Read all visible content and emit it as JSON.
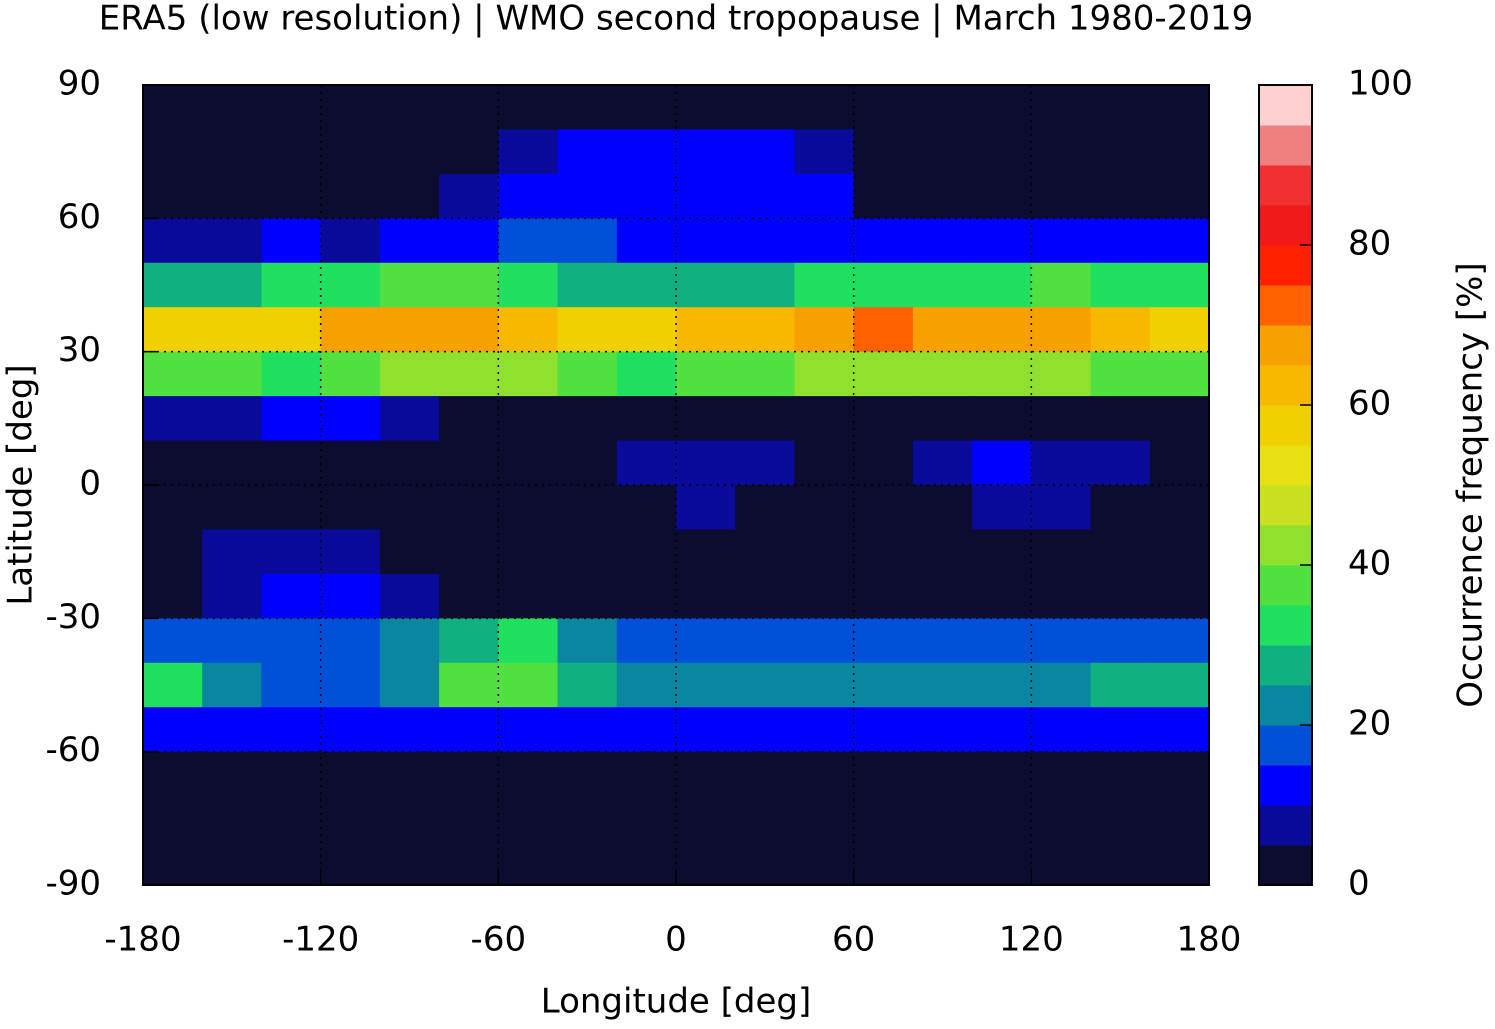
{
  "chart_data": {
    "type": "heatmap",
    "title": "ERA5 (low resolution) | WMO second tropopause | March 1980-2019",
    "x_label": "Longitude [deg]",
    "y_label": "Latitude [deg]",
    "colorbar_label": "Occurrence frequency [%]",
    "x": [
      -170,
      -150,
      -130,
      -110,
      -90,
      -70,
      -50,
      -30,
      -10,
      10,
      30,
      50,
      70,
      90,
      110,
      130,
      150,
      170
    ],
    "y": [
      85,
      75,
      65,
      55,
      45,
      35,
      25,
      15,
      5,
      -5,
      -15,
      -25,
      -35,
      -45,
      -55,
      -65,
      -75,
      -85
    ],
    "values": [
      [
        2,
        2,
        2,
        2,
        2,
        2,
        2,
        2,
        2,
        2,
        2,
        2,
        2,
        2,
        2,
        2,
        2,
        2
      ],
      [
        2,
        2,
        2,
        2,
        2,
        2,
        8,
        10,
        10,
        12,
        10,
        8,
        2,
        2,
        2,
        2,
        2,
        2
      ],
      [
        2,
        2,
        2,
        3,
        3,
        5,
        10,
        12,
        12,
        12,
        12,
        10,
        4,
        3,
        3,
        3,
        3,
        3
      ],
      [
        8,
        8,
        10,
        8,
        10,
        12,
        15,
        15,
        12,
        12,
        10,
        10,
        10,
        10,
        10,
        12,
        12,
        10
      ],
      [
        28,
        28,
        30,
        30,
        35,
        35,
        32,
        28,
        25,
        25,
        28,
        30,
        32,
        32,
        32,
        35,
        32,
        30
      ],
      [
        55,
        55,
        58,
        65,
        68,
        65,
        60,
        58,
        58,
        60,
        62,
        65,
        70,
        68,
        66,
        65,
        62,
        58
      ],
      [
        35,
        35,
        30,
        35,
        40,
        42,
        40,
        35,
        30,
        35,
        38,
        40,
        40,
        42,
        42,
        40,
        38,
        35
      ],
      [
        5,
        8,
        10,
        10,
        5,
        3,
        3,
        3,
        3,
        2,
        3,
        3,
        3,
        3,
        3,
        3,
        3,
        3
      ],
      [
        2,
        2,
        2,
        2,
        2,
        2,
        2,
        2,
        5,
        8,
        8,
        2,
        2,
        8,
        10,
        8,
        5,
        2
      ],
      [
        2,
        2,
        2,
        2,
        2,
        2,
        2,
        2,
        2,
        5,
        2,
        2,
        2,
        2,
        5,
        5,
        2,
        2
      ],
      [
        2,
        5,
        8,
        5,
        2,
        2,
        2,
        2,
        2,
        2,
        2,
        2,
        2,
        2,
        2,
        2,
        2,
        2
      ],
      [
        3,
        8,
        12,
        12,
        8,
        3,
        3,
        3,
        3,
        3,
        3,
        3,
        3,
        3,
        3,
        3,
        3,
        3
      ],
      [
        15,
        15,
        18,
        18,
        20,
        25,
        30,
        20,
        18,
        15,
        15,
        15,
        15,
        15,
        15,
        15,
        18,
        18
      ],
      [
        30,
        20,
        18,
        18,
        20,
        35,
        35,
        25,
        22,
        22,
        22,
        22,
        22,
        22,
        22,
        22,
        25,
        28
      ],
      [
        10,
        10,
        10,
        10,
        10,
        12,
        12,
        10,
        10,
        10,
        10,
        10,
        10,
        10,
        10,
        10,
        10,
        10
      ],
      [
        2,
        2,
        2,
        2,
        2,
        2,
        2,
        2,
        2,
        2,
        2,
        2,
        2,
        2,
        2,
        2,
        2,
        2
      ],
      [
        2,
        2,
        2,
        2,
        2,
        2,
        2,
        2,
        2,
        2,
        2,
        2,
        2,
        2,
        2,
        2,
        2,
        2
      ],
      [
        2,
        2,
        2,
        2,
        2,
        2,
        2,
        2,
        2,
        2,
        2,
        2,
        2,
        2,
        2,
        2,
        2,
        2
      ]
    ],
    "xlim": [
      -180,
      180
    ],
    "ylim": [
      -90,
      90
    ],
    "xticks": [
      -180,
      -120,
      -60,
      0,
      60,
      120,
      180
    ],
    "yticks": [
      -90,
      -60,
      -30,
      0,
      30,
      60,
      90
    ],
    "grid": true,
    "levels": [
      0,
      5,
      10,
      15,
      20,
      25,
      30,
      35,
      40,
      45,
      50,
      55,
      60,
      65,
      70,
      75,
      80,
      85,
      90,
      95,
      100
    ],
    "colors": [
      "#0c0c30",
      "#0a0a9a",
      "#0000ff",
      "#0050d8",
      "#0a86a0",
      "#10b080",
      "#20e060",
      "#50e040",
      "#90e030",
      "#c8e020",
      "#e8e010",
      "#f0d000",
      "#f8b800",
      "#f8a000",
      "#ff6000",
      "#ff2000",
      "#f01818",
      "#f03030",
      "#f08080",
      "#ffd0d0"
    ],
    "clim": [
      0,
      100
    ],
    "cticks": [
      0,
      20,
      40,
      60,
      80,
      100
    ]
  }
}
